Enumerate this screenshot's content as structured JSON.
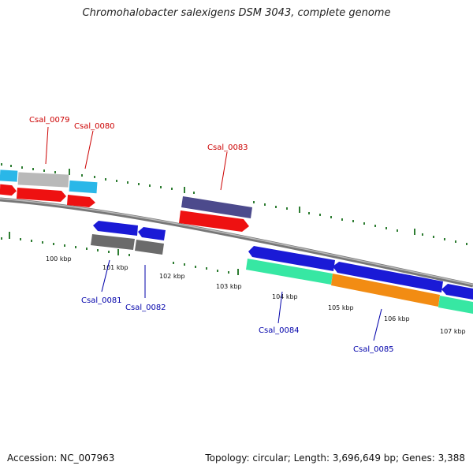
{
  "title": "Chromohalobacter salexigens DSM 3043, complete genome",
  "footer": {
    "accession": "Accession: NC_007963",
    "topology": "Topology: circular; Length: 3,696,649 bp; Genes: 3,388"
  },
  "colors": {
    "forward_label": "#cc0000",
    "reverse_label": "#0000aa",
    "tick": "#2e7d32",
    "backbone": "#888888",
    "cyan": "#2ab7e8",
    "gray": "#b9b9b9",
    "dark_gray": "#6b6b6b",
    "red": "#ee1111",
    "navy": "#4c4a8c",
    "blue": "#1a1ad6",
    "aqua": "#37e7a3",
    "orange": "#f28c13"
  },
  "kbp_labels": [
    "100 kbp",
    "101 kbp",
    "102 kbp",
    "103 kbp",
    "104 kbp",
    "105 kbp",
    "106 kbp",
    "107 kbp"
  ],
  "gene_labels": {
    "forward": [
      "Csal_0079",
      "Csal_0080",
      "Csal_0083"
    ],
    "reverse": [
      "Csal_0081",
      "Csal_0082",
      "Csal_0084",
      "Csal_0085"
    ]
  }
}
